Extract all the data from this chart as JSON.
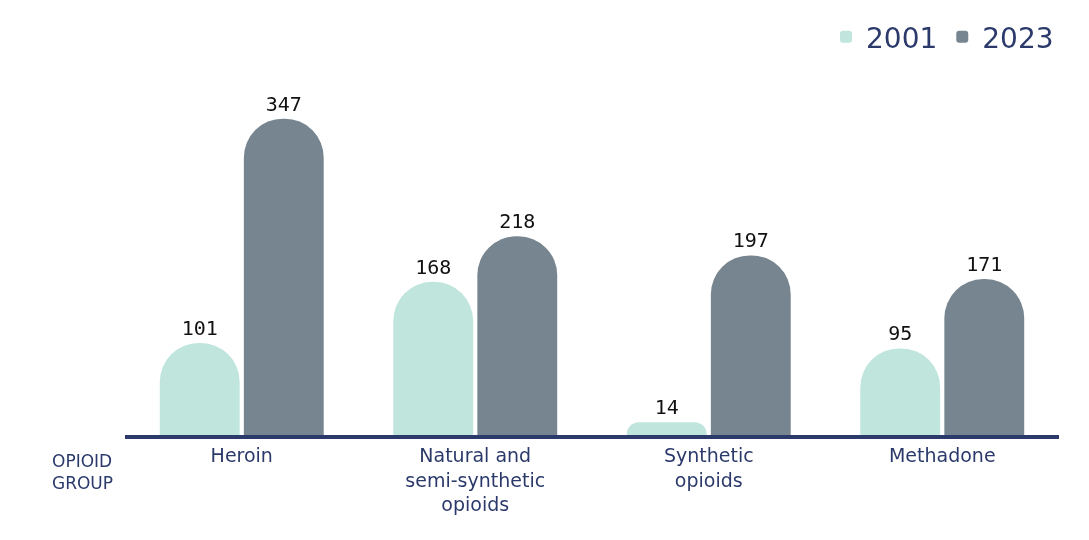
{
  "chart_data": {
    "type": "bar",
    "xlabel": "OPIOID GROUP",
    "categories": [
      "Heroin",
      "Natural and semi-synthetic opioids",
      "Synthetic opioids",
      "Methadone"
    ],
    "series": [
      {
        "name": "2001",
        "color": "#bfe5dc",
        "values": [
          101,
          168,
          14,
          95
        ]
      },
      {
        "name": "2023",
        "color": "#76858f",
        "values": [
          347,
          218,
          197,
          171
        ]
      }
    ],
    "data_labels": true,
    "legend": "top right"
  }
}
